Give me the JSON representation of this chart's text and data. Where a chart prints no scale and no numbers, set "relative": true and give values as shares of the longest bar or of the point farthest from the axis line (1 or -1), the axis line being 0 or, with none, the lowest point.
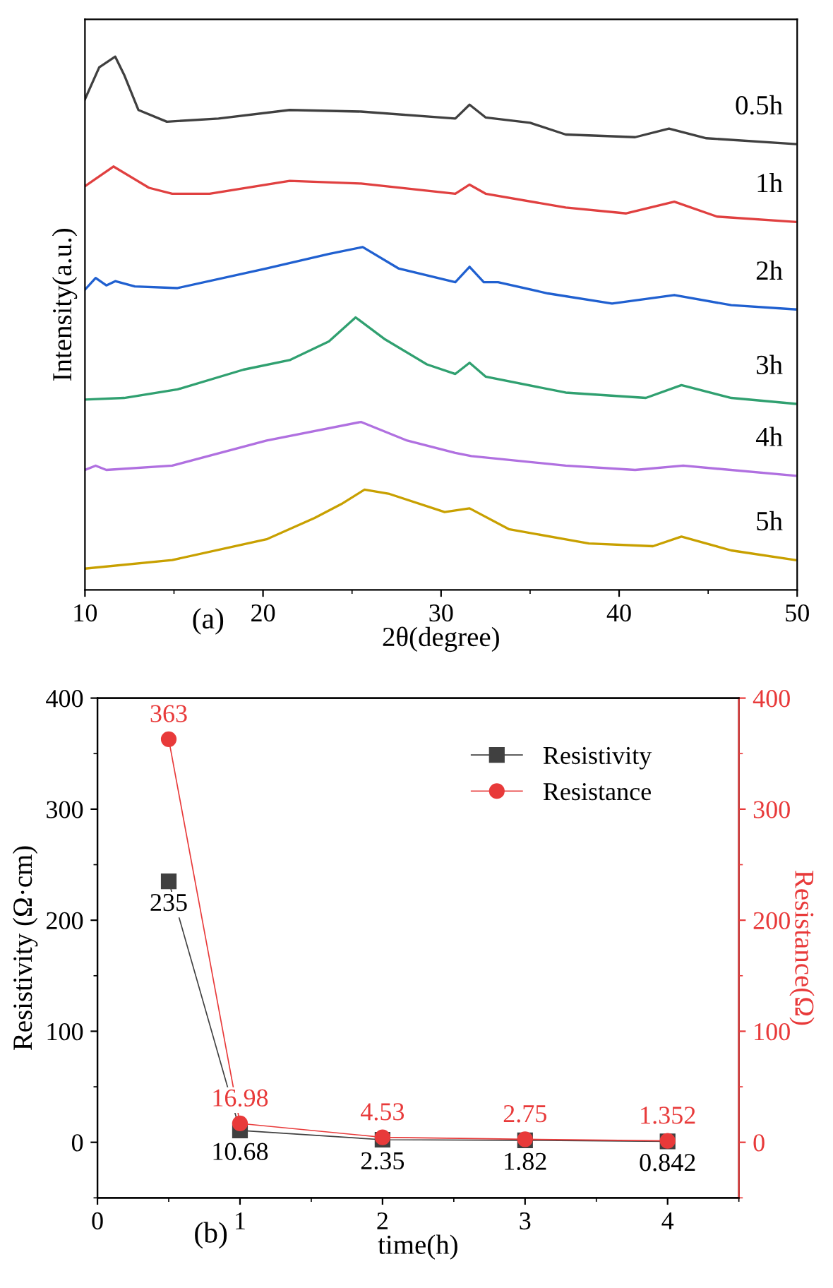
{
  "chart_data": [
    {
      "type": "line",
      "relative": true,
      "xlabel": "2θ(degree)",
      "ylabel": "Intensity(a.u.)",
      "xlim": [
        10,
        50
      ],
      "xticks": [
        10,
        20,
        30,
        40,
        50
      ],
      "tick_labels": "x",
      "annotations": [
        "(a)"
      ],
      "series": [
        {
          "name": "0.5h",
          "color": "#404040",
          "x": [
            10,
            10.8,
            11.7,
            12.2,
            13.0,
            14.6,
            17.5,
            21.5,
            25.5,
            30.8,
            31.6,
            32.5,
            35,
            37,
            40.9,
            42.8,
            44.9,
            49.9
          ],
          "values": [
            0.92,
            0.98,
            1.0,
            0.966,
            0.9,
            0.878,
            0.884,
            0.9,
            0.897,
            0.884,
            0.91,
            0.886,
            0.876,
            0.854,
            0.849,
            0.865,
            0.847,
            0.836
          ]
        },
        {
          "name": "1h",
          "color": "#e04040",
          "x": [
            10,
            11.6,
            13.6,
            14.9,
            17,
            21.5,
            25.5,
            30.8,
            31.6,
            32.5,
            37,
            40.4,
            43.1,
            45.5,
            49.9
          ],
          "values": [
            0.757,
            0.794,
            0.754,
            0.743,
            0.743,
            0.767,
            0.762,
            0.743,
            0.76,
            0.743,
            0.717,
            0.706,
            0.728,
            0.7,
            0.69
          ]
        },
        {
          "name": "2h",
          "color": "#2060d0",
          "x": [
            10,
            10.6,
            11.2,
            11.7,
            12.8,
            15.2,
            20.2,
            23.7,
            25.6,
            27.6,
            30.8,
            31.6,
            32.4,
            33.2,
            36,
            39.6,
            43.1,
            46.3,
            49.9
          ],
          "values": [
            0.563,
            0.585,
            0.571,
            0.579,
            0.569,
            0.566,
            0.603,
            0.63,
            0.643,
            0.603,
            0.577,
            0.606,
            0.577,
            0.577,
            0.556,
            0.537,
            0.553,
            0.534,
            0.526
          ]
        },
        {
          "name": "3h",
          "color": "#30a070",
          "x": [
            10,
            12.2,
            15.2,
            18.9,
            21.5,
            23.7,
            25.2,
            26.8,
            29.2,
            30.8,
            31.6,
            32.5,
            37,
            41.5,
            43.5,
            46.3,
            49.9
          ],
          "values": [
            0.357,
            0.36,
            0.376,
            0.413,
            0.431,
            0.466,
            0.511,
            0.471,
            0.423,
            0.405,
            0.426,
            0.4,
            0.37,
            0.36,
            0.384,
            0.36,
            0.349
          ]
        },
        {
          "name": "4h",
          "color": "#b070e0",
          "x": [
            10,
            10.6,
            11.2,
            14.9,
            20.2,
            25.5,
            28.1,
            30.8,
            31.7,
            37,
            40.9,
            43.6,
            49.9
          ],
          "values": [
            0.225,
            0.233,
            0.225,
            0.233,
            0.28,
            0.315,
            0.28,
            0.257,
            0.251,
            0.233,
            0.225,
            0.233,
            0.214
          ]
        },
        {
          "name": "5h",
          "color": "#c8a000",
          "x": [
            10,
            14.9,
            20.2,
            22.9,
            24.4,
            25.7,
            27.1,
            30.2,
            31.6,
            33.8,
            38.3,
            41.9,
            43.5,
            46.3,
            49.9
          ],
          "values": [
            0.04,
            0.056,
            0.095,
            0.135,
            0.161,
            0.188,
            0.18,
            0.146,
            0.153,
            0.114,
            0.087,
            0.082,
            0.1,
            0.074,
            0.056
          ]
        }
      ]
    },
    {
      "type": "line",
      "xlabel": "time(h)",
      "ylabel": "Resistivity (Ω·cm)",
      "y2label": "Resistance(Ω)",
      "xlim": [
        0,
        4.5
      ],
      "xticks": [
        0,
        1,
        2,
        3,
        4
      ],
      "ylim": [
        -50,
        400
      ],
      "yticks": [
        0,
        100,
        200,
        300,
        400
      ],
      "y2lim": [
        -50,
        400
      ],
      "y2ticks": [
        0,
        100,
        200,
        300,
        400
      ],
      "x": [
        0.5,
        1,
        2,
        3,
        4
      ],
      "data_labels": true,
      "legend": "top right",
      "grid": false,
      "line_style": "solid",
      "annotations": [
        "(b)"
      ],
      "series": [
        {
          "name": "Resistivity",
          "color": "#404040",
          "marker": "square",
          "values": [
            235,
            10.68,
            2.35,
            1.82,
            0.842
          ]
        },
        {
          "name": "Resistance",
          "color": "#e83a3a",
          "marker": "circle",
          "axis": "y2",
          "values": [
            363,
            16.98,
            4.53,
            2.75,
            1.352
          ]
        }
      ]
    }
  ]
}
